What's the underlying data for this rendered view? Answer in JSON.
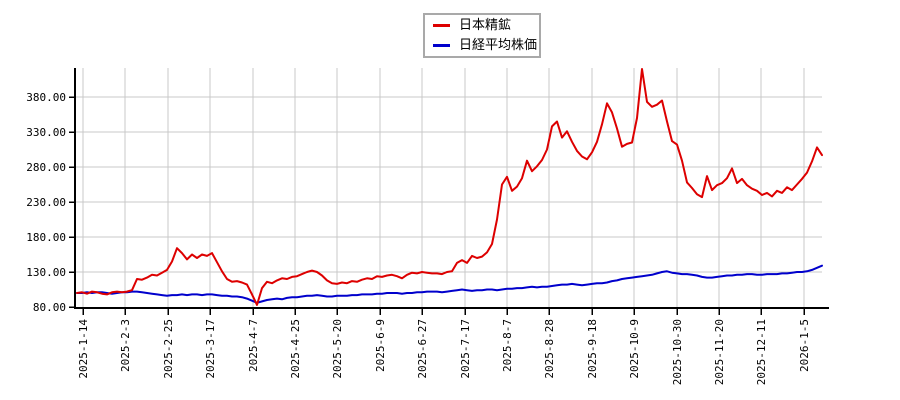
{
  "legend": {
    "items": [
      {
        "label": "日本精鉱",
        "color": "#dd0000"
      },
      {
        "label": "日経平均株価",
        "color": "#0000cc"
      }
    ]
  },
  "colors": {
    "background": "#ffffff",
    "grid": "#c8c8c8",
    "axis": "#000000",
    "tick_text": "#000000"
  },
  "chart_data": {
    "type": "line",
    "title": "",
    "xlabel": "",
    "ylabel": "",
    "grid": true,
    "legend_position": "top-center",
    "ylim": [
      80,
      425
    ],
    "y_ticks": [
      80,
      130,
      180,
      230,
      280,
      330,
      380
    ],
    "y_tick_labels": [
      "80.00",
      "130.00",
      "180.00",
      "230.00",
      "280.00",
      "330.00",
      "380.00"
    ],
    "x_tick_labels": [
      "2025-1-14",
      "2025-2-3",
      "2025-2-25",
      "2025-3-17",
      "2025-4-7",
      "2025-4-25",
      "2025-5-20",
      "2025-6-9",
      "2025-6-27",
      "2025-7-17",
      "2025-8-7",
      "2025-8-28",
      "2025-9-18",
      "2025-10-9",
      "2025-10-30",
      "2025-11-20",
      "2025-12-11",
      "2026-1-5"
    ],
    "x_range_note": "values are a normalized performance index (start = 100) sampled evenly from 2025-1-14 to 2026-1-13",
    "series": [
      {
        "name": "日本精鉱",
        "color": "#dd0000",
        "values": [
          100,
          101,
          99,
          102,
          101,
          99,
          98,
          101,
          102,
          101,
          102,
          104,
          120,
          119,
          122,
          126,
          125,
          129,
          133,
          145,
          164,
          157,
          148,
          155,
          150,
          155,
          153,
          157,
          144,
          131,
          120,
          116,
          117,
          115,
          112,
          98,
          83,
          107,
          116,
          114,
          118,
          121,
          120,
          123,
          124,
          127,
          130,
          132,
          130,
          125,
          118,
          114,
          113,
          115,
          114,
          117,
          116,
          119,
          121,
          120,
          124,
          123,
          125,
          126,
          124,
          121,
          126,
          129,
          128,
          130,
          129,
          128,
          128,
          127,
          130,
          131,
          143,
          147,
          143,
          153,
          150,
          152,
          158,
          170,
          205,
          255,
          266,
          246,
          252,
          264,
          289,
          274,
          281,
          290,
          305,
          338,
          345,
          322,
          331,
          316,
          303,
          295,
          291,
          301,
          316,
          341,
          371,
          358,
          335,
          309,
          313,
          315,
          350,
          420,
          373,
          366,
          369,
          375,
          345,
          317,
          312,
          289,
          258,
          250,
          241,
          237,
          267,
          247,
          254,
          257,
          264,
          278,
          257,
          263,
          254,
          249,
          246,
          240,
          243,
          238,
          246,
          243,
          251,
          247,
          255,
          263,
          272,
          288,
          308,
          297
        ]
      },
      {
        "name": "日経平均株価",
        "color": "#0000cc",
        "values": [
          100,
          100,
          101,
          100,
          101,
          101,
          100,
          99,
          100,
          101,
          101,
          102,
          102,
          101,
          100,
          99,
          98,
          97,
          96,
          97,
          97,
          98,
          97,
          98,
          98,
          97,
          98,
          98,
          97,
          96,
          96,
          95,
          95,
          94,
          92,
          89,
          86,
          88,
          90,
          91,
          92,
          91,
          93,
          94,
          94,
          95,
          96,
          96,
          97,
          96,
          95,
          95,
          96,
          96,
          96,
          97,
          97,
          98,
          98,
          98,
          99,
          99,
          100,
          100,
          100,
          99,
          100,
          100,
          101,
          101,
          102,
          102,
          102,
          101,
          102,
          103,
          104,
          105,
          104,
          103,
          104,
          104,
          105,
          105,
          104,
          105,
          106,
          106,
          107,
          107,
          108,
          109,
          108,
          109,
          109,
          110,
          111,
          112,
          112,
          113,
          112,
          111,
          112,
          113,
          114,
          114,
          115,
          117,
          118,
          120,
          121,
          122,
          123,
          124,
          125,
          126,
          128,
          130,
          131,
          129,
          128,
          127,
          127,
          126,
          125,
          123,
          122,
          122,
          123,
          124,
          125,
          125,
          126,
          126,
          127,
          127,
          126,
          126,
          127,
          127,
          127,
          128,
          128,
          129,
          130,
          130,
          131,
          133,
          136,
          139
        ]
      }
    ]
  }
}
